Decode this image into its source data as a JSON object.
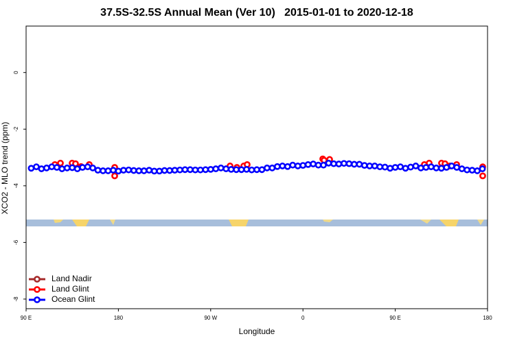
{
  "chart_data": {
    "type": "scatter",
    "title": "37.5S-32.5S Annual Mean (Ver 10)   2015-01-01 to 2020-12-18",
    "xlabel": "Longitude",
    "ylabel": "XCO2 - MLO trend (ppm)",
    "xlim": [
      90,
      540
    ],
    "ylim": [
      -8.34,
      1.64
    ],
    "xticks": [
      {
        "value": 90,
        "label": "90 E"
      },
      {
        "value": 180,
        "label": "180"
      },
      {
        "value": 270,
        "label": "90 W"
      },
      {
        "value": 360,
        "label": "0"
      },
      {
        "value": 450,
        "label": "90 E"
      },
      {
        "value": 540,
        "label": "180"
      }
    ],
    "yticks": [
      0,
      -2,
      -4,
      -6,
      -8
    ],
    "legend": "bottom-left",
    "series": [
      {
        "name": "Land Nadir",
        "color": "#a52a2a",
        "x": [],
        "values": []
      },
      {
        "name": "Land Glint",
        "color": "#ff0000",
        "x": [
          118.1,
          123.5,
          134.9,
          138.2,
          143.6,
          151.6,
          176.4,
          176.4,
          288.9,
          295.6,
          302.3,
          305.6,
          379.3,
          380.6,
          386,
          478.4,
          483.1,
          495.1,
          498.5,
          503.2,
          509.9,
          535.3,
          535.3
        ],
        "values": [
          -3.25,
          -3.2,
          -3.2,
          -3.22,
          -3.32,
          -3.25,
          -3.35,
          -3.65,
          -3.3,
          -3.35,
          -3.3,
          -3.25,
          -3.05,
          -3.1,
          -3.07,
          -3.25,
          -3.2,
          -3.2,
          -3.22,
          -3.3,
          -3.25,
          -3.33,
          -3.65
        ]
      },
      {
        "name": "Ocean Glint",
        "color": "#0000ff",
        "x": [
          95,
          100,
          105,
          110,
          115,
          120,
          125,
          130,
          135,
          140,
          145,
          150,
          155,
          160,
          165,
          170,
          175,
          180,
          185,
          190,
          195,
          200,
          205,
          210,
          215,
          220,
          225,
          230,
          235,
          240,
          245,
          250,
          255,
          260,
          265,
          270,
          275,
          280,
          285,
          290,
          295,
          300,
          305,
          310,
          315,
          320,
          325,
          330,
          335,
          340,
          345,
          350,
          355,
          360,
          365,
          370,
          375,
          380,
          385,
          390,
          395,
          400,
          405,
          410,
          415,
          420,
          425,
          430,
          435,
          440,
          445,
          450,
          455,
          460,
          465,
          470,
          475,
          480,
          485,
          490,
          495,
          500,
          505,
          510,
          515,
          520,
          525,
          530,
          535
        ],
        "values": [
          -3.38,
          -3.33,
          -3.4,
          -3.37,
          -3.33,
          -3.35,
          -3.4,
          -3.37,
          -3.36,
          -3.4,
          -3.35,
          -3.33,
          -3.37,
          -3.45,
          -3.47,
          -3.47,
          -3.45,
          -3.48,
          -3.45,
          -3.44,
          -3.46,
          -3.47,
          -3.47,
          -3.45,
          -3.48,
          -3.48,
          -3.46,
          -3.46,
          -3.45,
          -3.44,
          -3.43,
          -3.43,
          -3.44,
          -3.44,
          -3.43,
          -3.42,
          -3.4,
          -3.37,
          -3.4,
          -3.42,
          -3.43,
          -3.43,
          -3.42,
          -3.44,
          -3.43,
          -3.43,
          -3.37,
          -3.37,
          -3.32,
          -3.3,
          -3.32,
          -3.27,
          -3.3,
          -3.28,
          -3.25,
          -3.23,
          -3.27,
          -3.27,
          -3.2,
          -3.22,
          -3.23,
          -3.21,
          -3.22,
          -3.24,
          -3.24,
          -3.28,
          -3.3,
          -3.3,
          -3.33,
          -3.34,
          -3.38,
          -3.35,
          -3.33,
          -3.38,
          -3.34,
          -3.3,
          -3.37,
          -3.35,
          -3.33,
          -3.37,
          -3.38,
          -3.35,
          -3.3,
          -3.35,
          -3.4,
          -3.44,
          -3.45,
          -3.47,
          -3.4
        ]
      }
    ]
  }
}
